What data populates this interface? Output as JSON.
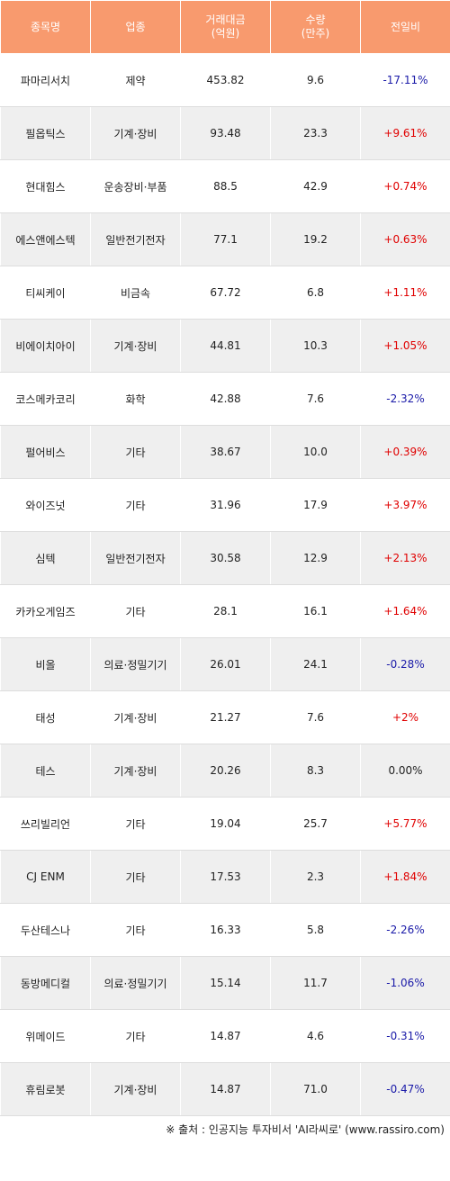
{
  "headers": [
    "종목명",
    "업종",
    "거래대금\n(억원)",
    "수량\n(만주)",
    "전일비"
  ],
  "rows": [
    {
      "name": "파마리서치",
      "sector": "제약",
      "amount": "453.82",
      "volume": "9.6",
      "change": "-17.11%",
      "dir": "down"
    },
    {
      "name": "필옵틱스",
      "sector": "기계·장비",
      "amount": "93.48",
      "volume": "23.3",
      "change": "+9.61%",
      "dir": "up"
    },
    {
      "name": "현대힘스",
      "sector": "운송장비·부품",
      "amount": "88.5",
      "volume": "42.9",
      "change": "+0.74%",
      "dir": "up"
    },
    {
      "name": "에스앤에스텍",
      "sector": "일반전기전자",
      "amount": "77.1",
      "volume": "19.2",
      "change": "+0.63%",
      "dir": "up"
    },
    {
      "name": "티씨케이",
      "sector": "비금속",
      "amount": "67.72",
      "volume": "6.8",
      "change": "+1.11%",
      "dir": "up"
    },
    {
      "name": "비에이치아이",
      "sector": "기계·장비",
      "amount": "44.81",
      "volume": "10.3",
      "change": "+1.05%",
      "dir": "up"
    },
    {
      "name": "코스메카코리",
      "sector": "화학",
      "amount": "42.88",
      "volume": "7.6",
      "change": "-2.32%",
      "dir": "down"
    },
    {
      "name": "펄어비스",
      "sector": "기타",
      "amount": "38.67",
      "volume": "10.0",
      "change": "+0.39%",
      "dir": "up"
    },
    {
      "name": "와이즈넛",
      "sector": "기타",
      "amount": "31.96",
      "volume": "17.9",
      "change": "+3.97%",
      "dir": "up"
    },
    {
      "name": "심텍",
      "sector": "일반전기전자",
      "amount": "30.58",
      "volume": "12.9",
      "change": "+2.13%",
      "dir": "up"
    },
    {
      "name": "카카오게임즈",
      "sector": "기타",
      "amount": "28.1",
      "volume": "16.1",
      "change": "+1.64%",
      "dir": "up"
    },
    {
      "name": "비올",
      "sector": "의료·정밀기기",
      "amount": "26.01",
      "volume": "24.1",
      "change": "-0.28%",
      "dir": "down"
    },
    {
      "name": "태성",
      "sector": "기계·장비",
      "amount": "21.27",
      "volume": "7.6",
      "change": "+2%",
      "dir": "up"
    },
    {
      "name": "테스",
      "sector": "기계·장비",
      "amount": "20.26",
      "volume": "8.3",
      "change": "0.00%",
      "dir": "flat"
    },
    {
      "name": "쓰리빌리언",
      "sector": "기타",
      "amount": "19.04",
      "volume": "25.7",
      "change": "+5.77%",
      "dir": "up"
    },
    {
      "name": "CJ ENM",
      "sector": "기타",
      "amount": "17.53",
      "volume": "2.3",
      "change": "+1.84%",
      "dir": "up"
    },
    {
      "name": "두산테스나",
      "sector": "기타",
      "amount": "16.33",
      "volume": "5.8",
      "change": "-2.26%",
      "dir": "down"
    },
    {
      "name": "동방메디컬",
      "sector": "의료·정밀기기",
      "amount": "15.14",
      "volume": "11.7",
      "change": "-1.06%",
      "dir": "down"
    },
    {
      "name": "위메이드",
      "sector": "기타",
      "amount": "14.87",
      "volume": "4.6",
      "change": "-0.31%",
      "dir": "down"
    },
    {
      "name": "휴림로봇",
      "sector": "기계·장비",
      "amount": "14.87",
      "volume": "71.0",
      "change": "-0.47%",
      "dir": "down"
    }
  ],
  "colors": {
    "header_bg": "#f89a6e",
    "up": "#e00000",
    "down": "#1a1aa8",
    "row_alt": "#efefef"
  },
  "footer": "※ 출처 : 인공지능 투자비서 'AI라씨로' (www.rassiro.com)"
}
